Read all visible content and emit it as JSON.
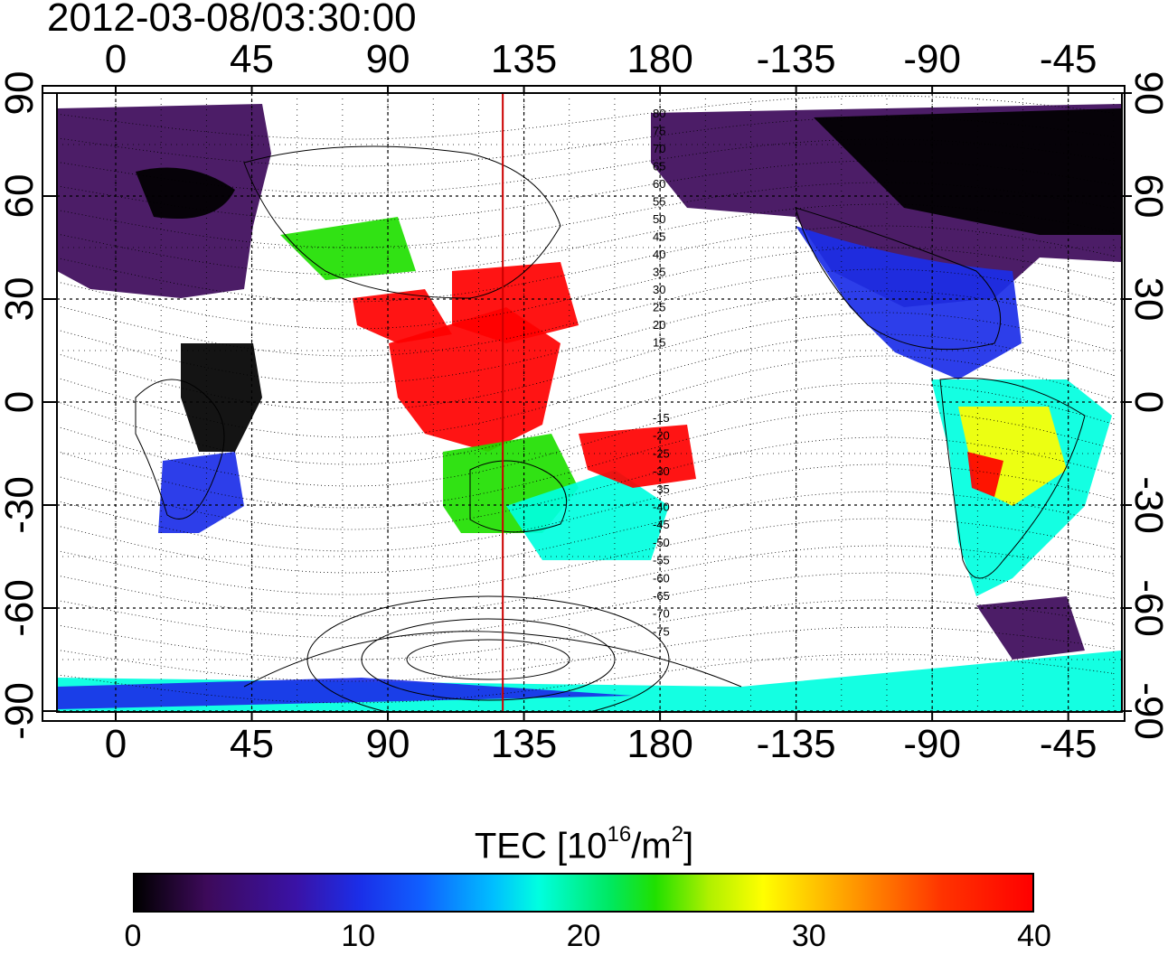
{
  "title": "2012-03-08/03:30:00",
  "map": {
    "x_tick_labels": [
      "0",
      "45",
      "90",
      "135",
      "180",
      "-135",
      "-90",
      "-45"
    ],
    "y_tick_labels": [
      "90",
      "60",
      "30",
      "0",
      "-30",
      "-60",
      "-90"
    ],
    "meridian_marker_lon": 128,
    "meridian_marker_color": "#cc0000",
    "contour_labels_upper": [
      "80",
      "75",
      "70",
      "65",
      "60",
      "55",
      "50",
      "45",
      "40",
      "35",
      "30",
      "25",
      "20",
      "15"
    ],
    "contour_labels_lower": [
      "-15",
      "-20",
      "-25",
      "-30",
      "-35",
      "-40",
      "-45",
      "-50",
      "-55",
      "-60",
      "-65",
      "-70",
      "-75"
    ]
  },
  "colorbar": {
    "title_prefix": "TEC  [10",
    "title_exp1": "16",
    "title_mid": "/m",
    "title_exp2": "2",
    "title_suffix": "]",
    "tick_labels": [
      "0",
      "10",
      "20",
      "30",
      "40"
    ],
    "min": 0,
    "max": 40
  },
  "colors": {
    "low": "#000000",
    "purple": "#3d0a5a",
    "blue": "#1b2ee8",
    "cyan": "#00ffe0",
    "green": "#20e000",
    "yellow": "#ffff00",
    "red": "#ff0000"
  }
}
